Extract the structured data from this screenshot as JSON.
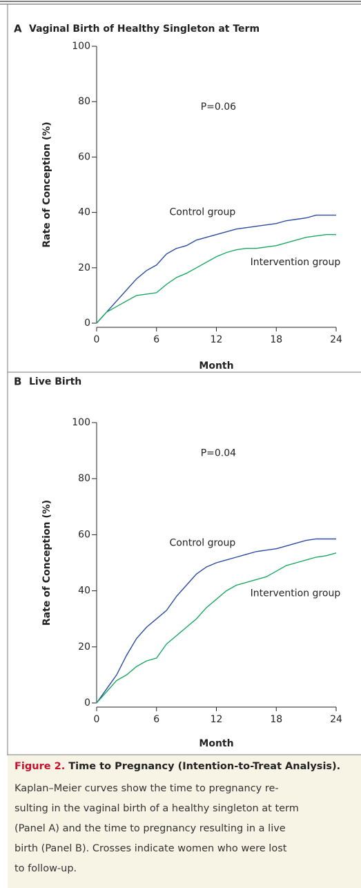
{
  "chart_data": [
    {
      "type": "line",
      "panel": "A",
      "title": "Vaginal Birth of Healthy Singleton at Term",
      "xlabel": "Month",
      "ylabel": "Rate of Conception (%)",
      "annotations": [
        "P=0.06",
        "Control group",
        "Intervention group"
      ],
      "x": [
        0,
        1,
        2,
        3,
        4,
        5,
        6,
        7,
        8,
        9,
        10,
        11,
        12,
        13,
        14,
        15,
        16,
        17,
        18,
        19,
        20,
        21,
        22,
        23,
        24
      ],
      "series": [
        {
          "name": "Control group",
          "color": "#2a4aa0",
          "values": [
            0,
            4,
            8,
            12,
            16,
            19,
            21,
            25,
            27,
            28,
            30,
            31,
            32,
            33,
            34,
            34.5,
            35,
            35.5,
            36,
            37,
            37.5,
            38,
            39,
            39,
            39
          ]
        },
        {
          "name": "Intervention group",
          "color": "#1aa860",
          "values": [
            0,
            4,
            6,
            8,
            10,
            10.5,
            11,
            14,
            16.5,
            18,
            20,
            22,
            24,
            25.5,
            26.5,
            27,
            27,
            27.5,
            28,
            29,
            30,
            31,
            31.5,
            32,
            32
          ]
        }
      ],
      "xlim": [
        0,
        24
      ],
      "xticks": [
        0,
        6,
        12,
        18,
        24
      ],
      "ylim": [
        0,
        100
      ],
      "yticks": [
        0,
        20,
        40,
        60,
        80,
        100
      ]
    },
    {
      "type": "line",
      "panel": "B",
      "title": "Live Birth",
      "xlabel": "Month",
      "ylabel": "Rate of Conception (%)",
      "annotations": [
        "P=0.04",
        "Control group",
        "Intervention group"
      ],
      "x": [
        0,
        1,
        2,
        3,
        4,
        5,
        6,
        7,
        8,
        9,
        10,
        11,
        12,
        13,
        14,
        15,
        16,
        17,
        18,
        19,
        20,
        21,
        22,
        23,
        24
      ],
      "series": [
        {
          "name": "Control group",
          "color": "#2a4aa0",
          "values": [
            0,
            5,
            10,
            17,
            23,
            27,
            30,
            33,
            38,
            42,
            46,
            48.5,
            50,
            51,
            52,
            53,
            54,
            54.5,
            55,
            56,
            57,
            58,
            58.5,
            58.5,
            58.5
          ]
        },
        {
          "name": "Intervention group",
          "color": "#1aa860",
          "values": [
            0,
            4,
            8,
            10,
            13,
            15,
            16,
            21,
            24,
            27,
            30,
            34,
            37,
            40,
            42,
            43,
            44,
            45,
            47,
            49,
            50,
            51,
            52,
            52.5,
            53.5
          ]
        }
      ],
      "xlim": [
        0,
        24
      ],
      "xticks": [
        0,
        6,
        12,
        18,
        24
      ],
      "ylim": [
        0,
        100
      ],
      "yticks": [
        0,
        20,
        40,
        60,
        80,
        100
      ]
    }
  ],
  "caption": {
    "label": "Figure 2.",
    "title": "Time to Pregnancy (Intention-to-Treat Analysis).",
    "lines": [
      "Kaplan–Meier curves show the time to pregnancy re-",
      "sulting in the vaginal birth of a healthy singleton at term",
      "(Panel A) and the time to pregnancy resulting in a live",
      "birth (Panel B). Crosses indicate women who were lost",
      "to follow-up."
    ]
  }
}
